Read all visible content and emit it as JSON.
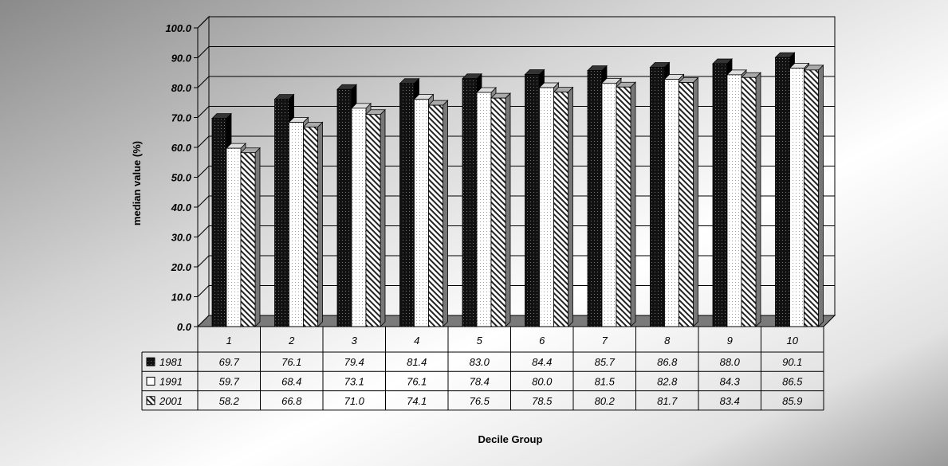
{
  "chart_data": {
    "type": "bar",
    "ylabel": "median value (%)",
    "xlabel": "Decile Group",
    "ylim": [
      0,
      100
    ],
    "y_ticks": [
      "0.0",
      "10.0",
      "20.0",
      "30.0",
      "40.0",
      "50.0",
      "60.0",
      "70.0",
      "80.0",
      "90.0",
      "100.0"
    ],
    "categories": [
      "1",
      "2",
      "3",
      "4",
      "5",
      "6",
      "7",
      "8",
      "9",
      "10"
    ],
    "series": [
      {
        "name": "1981",
        "values": [
          69.7,
          76.1,
          79.4,
          81.4,
          83.0,
          84.4,
          85.7,
          86.8,
          88.0,
          90.1
        ],
        "labels": [
          "69.7",
          "76.1",
          "79.4",
          "81.4",
          "83.0",
          "84.4",
          "85.7",
          "86.8",
          "88.0",
          "90.1"
        ]
      },
      {
        "name": "1991",
        "values": [
          59.7,
          68.4,
          73.1,
          76.1,
          78.4,
          80.0,
          81.5,
          82.8,
          84.3,
          86.5
        ],
        "labels": [
          "59.7",
          "68.4",
          "73.1",
          "76.1",
          "78.4",
          "80.0",
          "81.5",
          "82.8",
          "84.3",
          "86.5"
        ]
      },
      {
        "name": "2001",
        "values": [
          58.2,
          66.8,
          71.0,
          74.1,
          76.5,
          78.5,
          80.2,
          81.7,
          83.4,
          85.9
        ],
        "labels": [
          "58.2",
          "66.8",
          "71.0",
          "74.1",
          "76.5",
          "78.5",
          "80.2",
          "81.7",
          "83.4",
          "85.9"
        ]
      }
    ],
    "grid": true,
    "legend": "data-table"
  }
}
